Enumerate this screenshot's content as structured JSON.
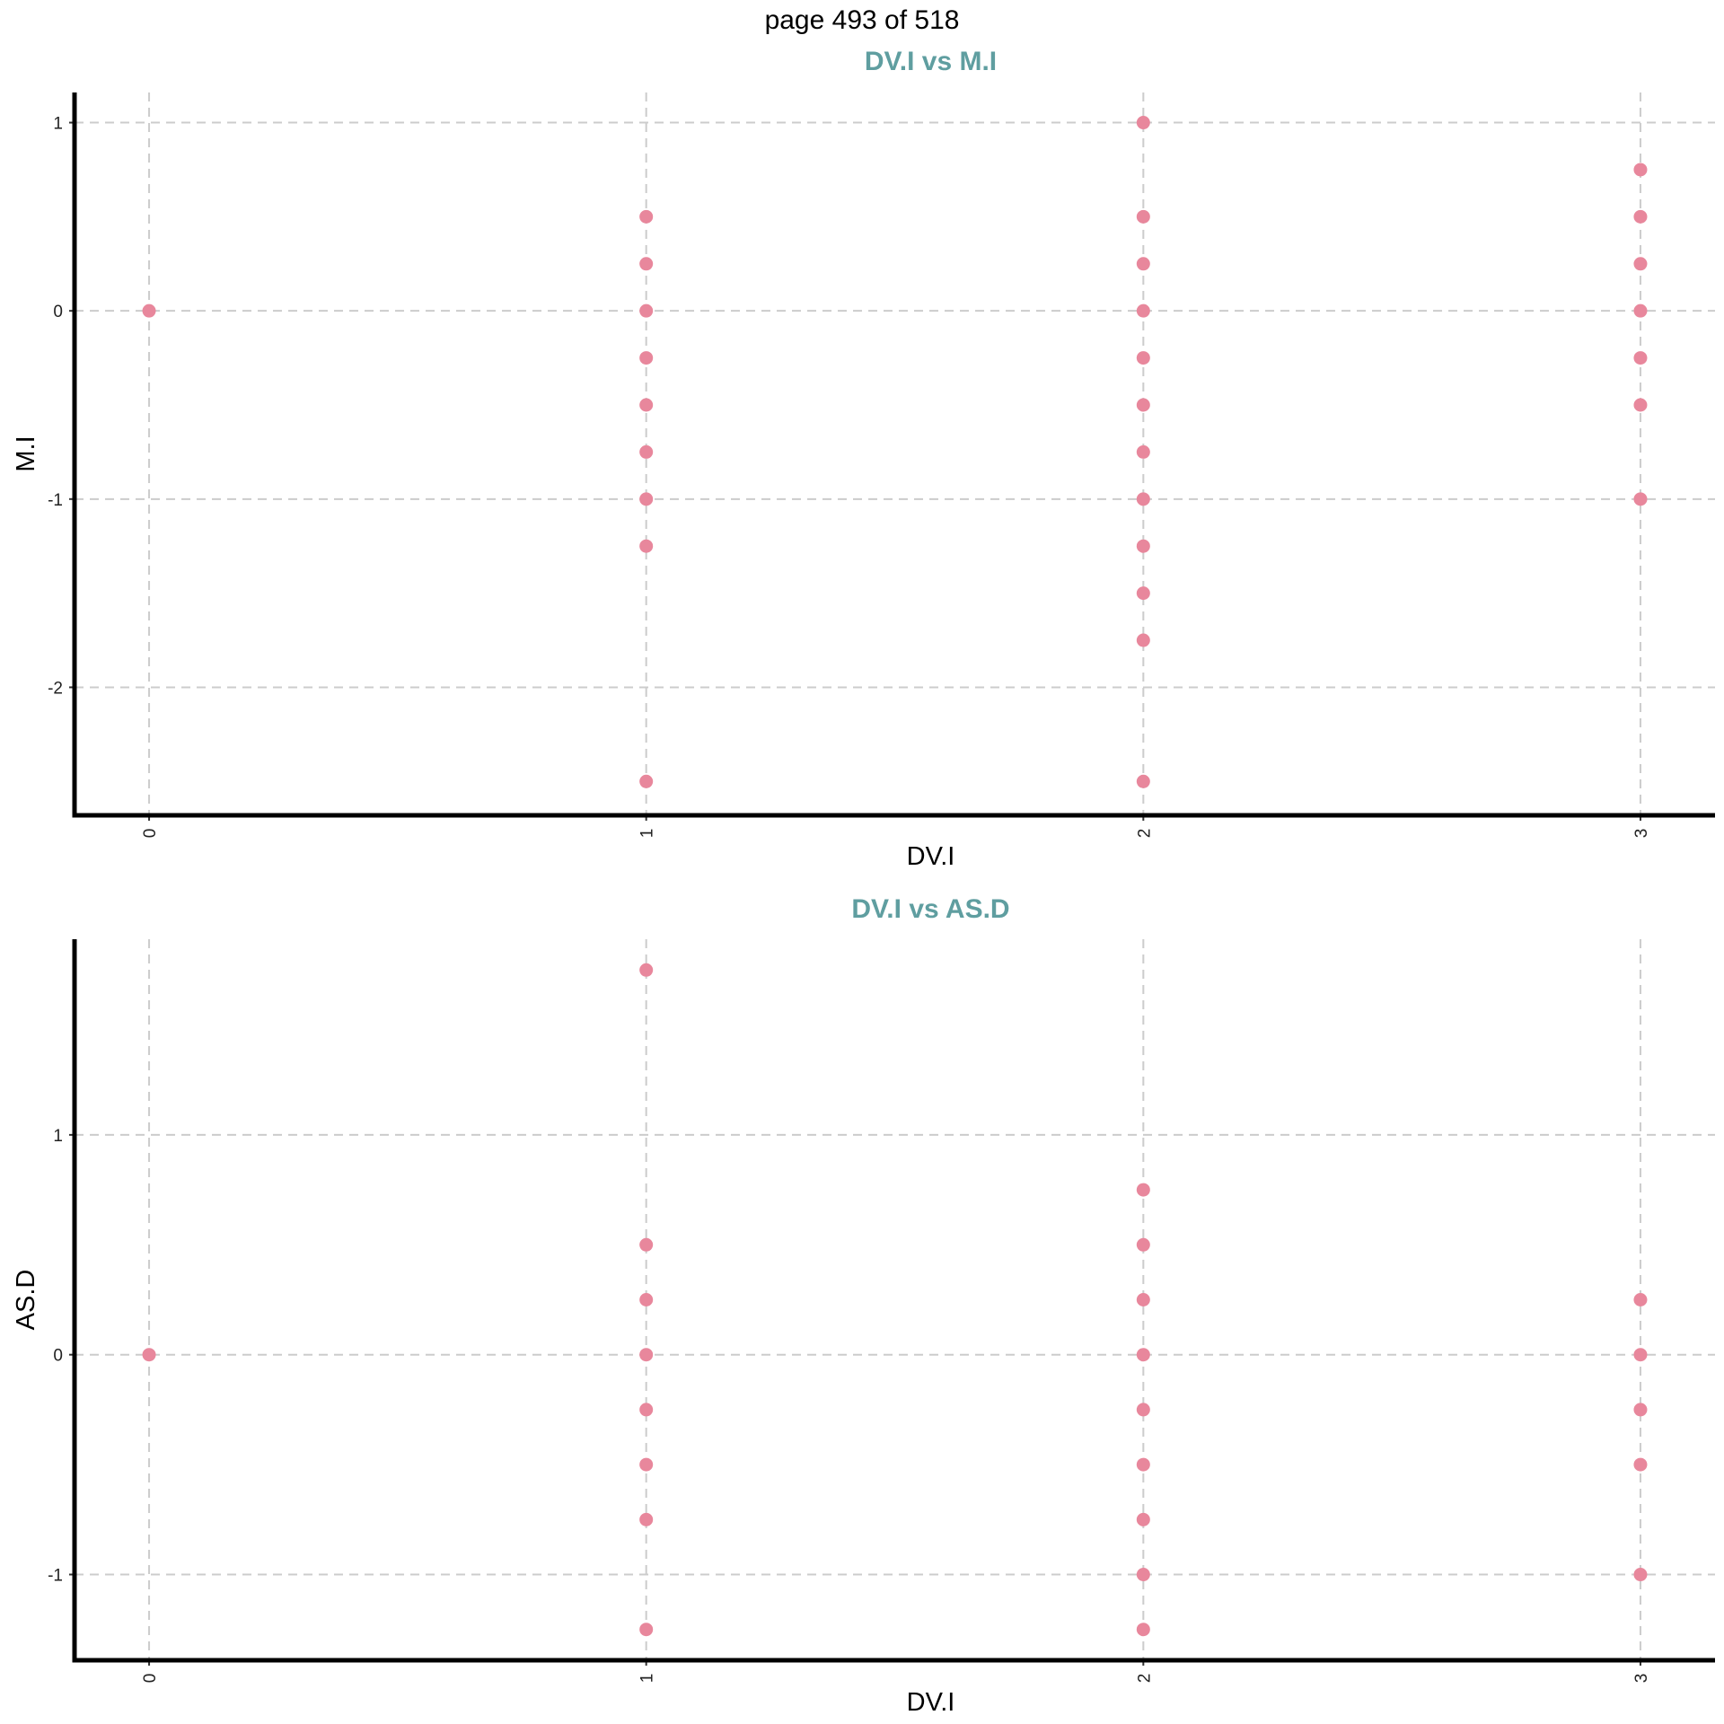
{
  "page_label": "page 493 of 518",
  "colors": {
    "point": "#e8879c",
    "title": "#5f9ea0",
    "grid": "#cccccc",
    "axis": "#000000"
  },
  "chart_data": [
    {
      "type": "scatter",
      "title": "DV.I vs M.I",
      "xlabel": "DV.I",
      "ylabel": "M.I",
      "xlim": [
        -0.15,
        3.15
      ],
      "ylim": [
        -2.68,
        1.16
      ],
      "xticks": [
        0,
        1,
        2,
        3
      ],
      "yticks": [
        -2,
        -1,
        0,
        1
      ],
      "grid": true,
      "legend": "none",
      "points": [
        {
          "x": 0,
          "y": 0
        },
        {
          "x": 1,
          "y": 0.5
        },
        {
          "x": 1,
          "y": 0.25
        },
        {
          "x": 1,
          "y": 0
        },
        {
          "x": 1,
          "y": -0.25
        },
        {
          "x": 1,
          "y": -0.5
        },
        {
          "x": 1,
          "y": -0.75
        },
        {
          "x": 1,
          "y": -1
        },
        {
          "x": 1,
          "y": -1.25
        },
        {
          "x": 1,
          "y": -2.5
        },
        {
          "x": 2,
          "y": 1
        },
        {
          "x": 2,
          "y": 0.5
        },
        {
          "x": 2,
          "y": 0.25
        },
        {
          "x": 2,
          "y": 0
        },
        {
          "x": 2,
          "y": -0.25
        },
        {
          "x": 2,
          "y": -0.5
        },
        {
          "x": 2,
          "y": -0.75
        },
        {
          "x": 2,
          "y": -1
        },
        {
          "x": 2,
          "y": -1.25
        },
        {
          "x": 2,
          "y": -1.5
        },
        {
          "x": 2,
          "y": -1.75
        },
        {
          "x": 2,
          "y": -2.5
        },
        {
          "x": 3,
          "y": 0.75
        },
        {
          "x": 3,
          "y": 0.5
        },
        {
          "x": 3,
          "y": 0.25
        },
        {
          "x": 3,
          "y": 0
        },
        {
          "x": 3,
          "y": -0.25
        },
        {
          "x": 3,
          "y": -0.5
        },
        {
          "x": 3,
          "y": -1
        }
      ]
    },
    {
      "type": "scatter",
      "title": "DV.I vs AS.D",
      "xlabel": "DV.I",
      "ylabel": "AS.D",
      "xlim": [
        -0.15,
        3.15
      ],
      "ylim": [
        -1.39,
        1.89
      ],
      "xticks": [
        0,
        1,
        2,
        3
      ],
      "yticks": [
        -1,
        0,
        1
      ],
      "grid": true,
      "legend": "none",
      "points": [
        {
          "x": 0,
          "y": 0
        },
        {
          "x": 1,
          "y": 1.75
        },
        {
          "x": 1,
          "y": 0.5
        },
        {
          "x": 1,
          "y": 0.25
        },
        {
          "x": 1,
          "y": 0
        },
        {
          "x": 1,
          "y": -0.25
        },
        {
          "x": 1,
          "y": -0.5
        },
        {
          "x": 1,
          "y": -0.75
        },
        {
          "x": 1,
          "y": -1.25
        },
        {
          "x": 2,
          "y": 0.75
        },
        {
          "x": 2,
          "y": 0.5
        },
        {
          "x": 2,
          "y": 0.25
        },
        {
          "x": 2,
          "y": 0
        },
        {
          "x": 2,
          "y": -0.25
        },
        {
          "x": 2,
          "y": -0.5
        },
        {
          "x": 2,
          "y": -0.75
        },
        {
          "x": 2,
          "y": -1
        },
        {
          "x": 2,
          "y": -1.25
        },
        {
          "x": 3,
          "y": 0.25
        },
        {
          "x": 3,
          "y": 0
        },
        {
          "x": 3,
          "y": -0.25
        },
        {
          "x": 3,
          "y": -0.5
        },
        {
          "x": 3,
          "y": -1
        }
      ]
    }
  ]
}
